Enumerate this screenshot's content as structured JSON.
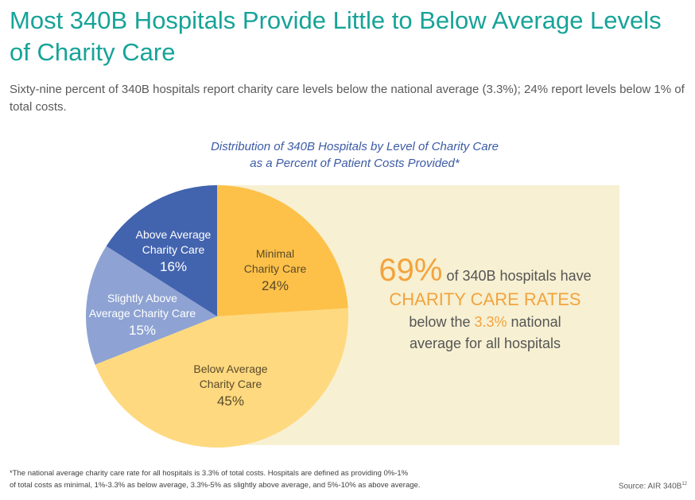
{
  "header": {
    "title": "Most 340B Hospitals Provide Little to Below Average Levels of Charity Care",
    "subtitle": "Sixty-nine percent of 340B hospitals report charity care levels below the national average (3.3%); 24% report levels below 1% of total costs."
  },
  "chart_data": {
    "type": "pie",
    "title": "Distribution of 340B Hospitals by Level of Charity Care as a Percent of Patient Costs Provided*",
    "title_lines": [
      "Distribution of 340B Hospitals by Level of Charity Care",
      "as a Percent of Patient Costs Provided*"
    ],
    "start": "top",
    "direction": "clockwise",
    "slices": [
      {
        "label_lines": [
          "Minimal",
          "Charity Care"
        ],
        "label": "Minimal Charity Care",
        "value": 24,
        "value_label": "24%",
        "color": "#fdc149"
      },
      {
        "label_lines": [
          "Below Average",
          "Charity Care"
        ],
        "label": "Below Average Charity Care",
        "value": 45,
        "value_label": "45%",
        "color": "#fed97f"
      },
      {
        "label_lines": [
          "Slightly Above",
          "Average Charity Care"
        ],
        "label": "Slightly Above Average Charity Care",
        "value": 15,
        "value_label": "15%",
        "color": "#8ea3d3"
      },
      {
        "label_lines": [
          "Above Average",
          "Charity Care"
        ],
        "label": "Above Average Charity Care",
        "value": 16,
        "value_label": "16%",
        "color": "#4263ae"
      }
    ]
  },
  "callout": {
    "big": "69%",
    "line1": "of 340B hospitals have",
    "line2": "CHARITY CARE RATES",
    "line3a": "below the",
    "line3b": "3.3%",
    "line3c": "national",
    "line4": "average for all hospitals"
  },
  "footer": {
    "note_line1": "*The national average charity care rate for all hospitals is 3.3% of total costs. Hospitals are defined as providing 0%-1%",
    "note_line2": "of total costs as minimal, 1%-3.3% as below average, 3.3%-5% as slightly above average, and 5%-10% as above average.",
    "source": "Source: AIR 340B",
    "source_sup": "12"
  },
  "colors": {
    "title": "#17a398",
    "accent": "#f3a33e",
    "chart_title": "#3c5ba5",
    "panel": "#f7f0d2"
  }
}
